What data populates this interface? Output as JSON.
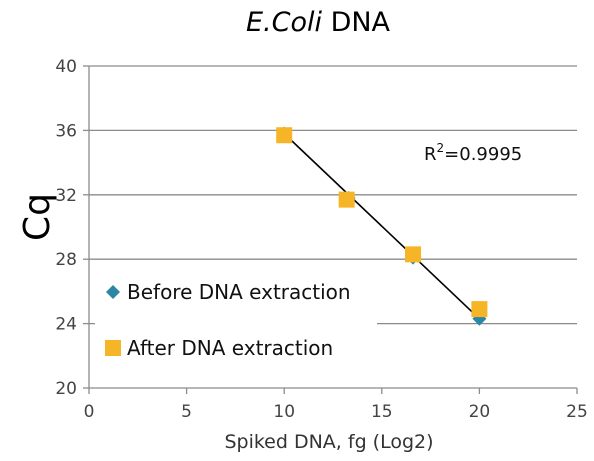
{
  "chart_data": {
    "type": "scatter",
    "title_italic": "E.Coli",
    "title_rest": " DNA",
    "xlabel": "Spiked DNA, fg (Log2)",
    "ylabel": "Cq",
    "xlim": [
      0,
      25
    ],
    "ylim": [
      20,
      40
    ],
    "x_ticks": [
      0,
      5,
      10,
      15,
      20,
      25
    ],
    "y_ticks": [
      20,
      24,
      28,
      32,
      36,
      40
    ],
    "grid": "horizontal",
    "legend_placement": "left",
    "series": [
      {
        "name": "Before DNA extraction",
        "marker": "diamond",
        "color": "#2e86a6",
        "points": [
          {
            "x": 10,
            "y": 35.8
          },
          {
            "x": 13.3,
            "y": 31.8
          },
          {
            "x": 16.6,
            "y": 28.1
          },
          {
            "x": 20,
            "y": 24.3
          }
        ]
      },
      {
        "name": "After DNA extraction",
        "marker": "square",
        "color": "#f5b526",
        "points": [
          {
            "x": 10,
            "y": 35.7
          },
          {
            "x": 13.2,
            "y": 31.7
          },
          {
            "x": 16.6,
            "y": 28.3
          },
          {
            "x": 20,
            "y": 24.9
          }
        ]
      }
    ],
    "trendline": {
      "x": [
        10,
        20
      ],
      "y": [
        35.8,
        24.3
      ],
      "color": "#000000"
    },
    "annotation": {
      "base": "R",
      "sup": "2",
      "value": "=0.9995"
    }
  }
}
